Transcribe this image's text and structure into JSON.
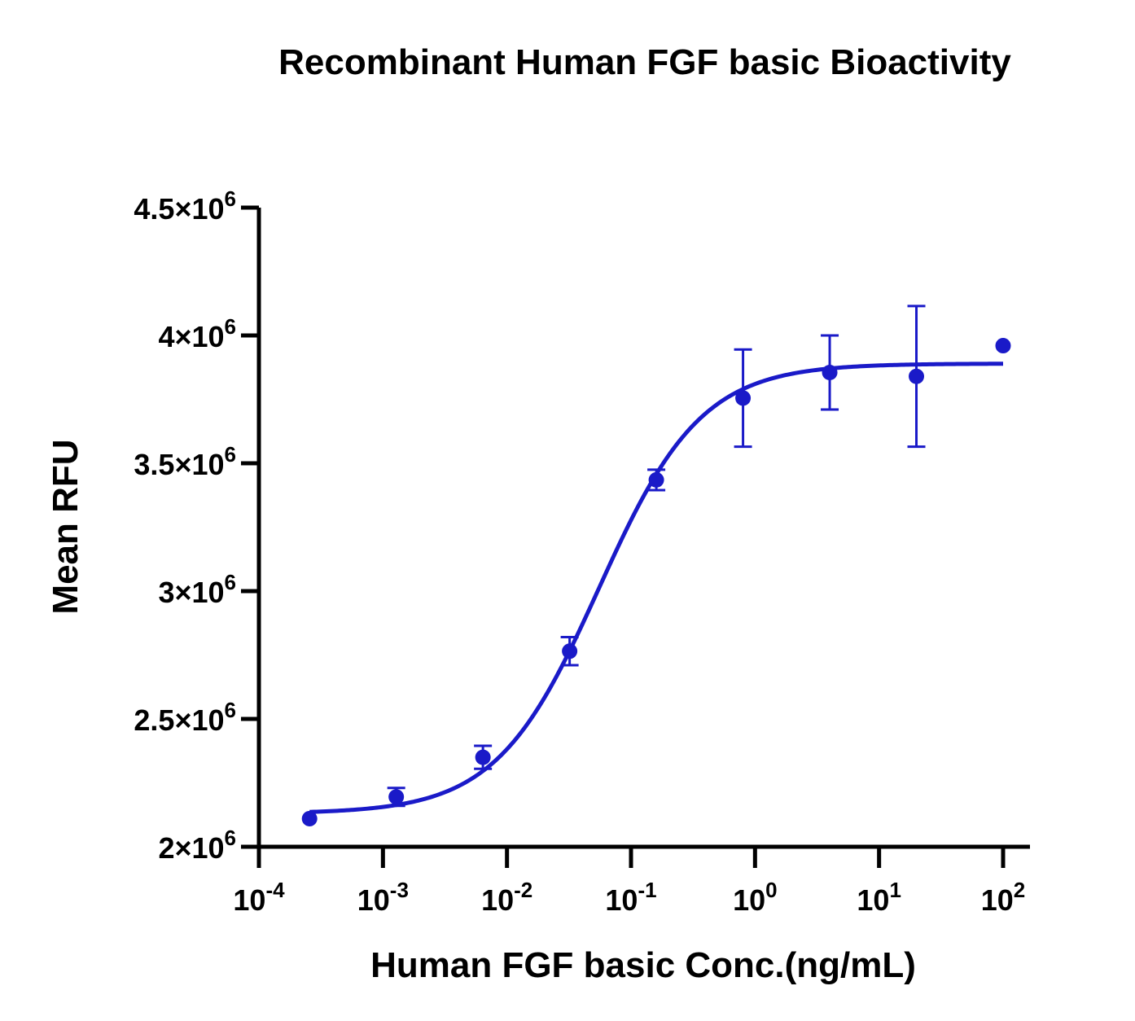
{
  "chart_data": {
    "type": "scatter",
    "title": "Recombinant Human FGF basic Bioactivity",
    "xlabel": "Human FGF basic Conc.(ng/mL)",
    "ylabel": "Mean RFU",
    "x_scale": "log",
    "xlim": [
      0.0001,
      100
    ],
    "ylim": [
      2000000,
      4500000
    ],
    "x_ticks": [
      {
        "value": 0.0001,
        "base": "10",
        "exp": "-4"
      },
      {
        "value": 0.001,
        "base": "10",
        "exp": "-3"
      },
      {
        "value": 0.01,
        "base": "10",
        "exp": "-2"
      },
      {
        "value": 0.1,
        "base": "10",
        "exp": "-1"
      },
      {
        "value": 1,
        "base": "10",
        "exp": "0"
      },
      {
        "value": 10,
        "base": "10",
        "exp": "1"
      },
      {
        "value": 100,
        "base": "10",
        "exp": "2"
      }
    ],
    "y_ticks": [
      {
        "value": 2000000,
        "mant": "2",
        "exp": "6"
      },
      {
        "value": 2500000,
        "mant": "2.5",
        "exp": "6"
      },
      {
        "value": 3000000,
        "mant": "3",
        "exp": "6"
      },
      {
        "value": 3500000,
        "mant": "3.5",
        "exp": "6"
      },
      {
        "value": 4000000,
        "mant": "4",
        "exp": "6"
      },
      {
        "value": 4500000,
        "mant": "4.5",
        "exp": "6"
      }
    ],
    "color": "#1a1ac8",
    "series": [
      {
        "points": [
          {
            "x": 0.000256,
            "y": 2110000,
            "err": 0
          },
          {
            "x": 0.00128,
            "y": 2195000,
            "err": 35000
          },
          {
            "x": 0.0064,
            "y": 2350000,
            "err": 45000
          },
          {
            "x": 0.032,
            "y": 2765000,
            "err": 55000
          },
          {
            "x": 0.16,
            "y": 3435000,
            "err": 40000
          },
          {
            "x": 0.8,
            "y": 3755000,
            "err": 190000
          },
          {
            "x": 4,
            "y": 3855000,
            "err": 145000
          },
          {
            "x": 20,
            "y": 3840000,
            "err": 275000
          },
          {
            "x": 100,
            "y": 3960000,
            "err": 0
          }
        ],
        "fit": {
          "model": "4PL",
          "bottom": 2130000,
          "top": 3890000,
          "ec50": 0.055,
          "hill": 1.05,
          "x_range": [
            0.000256,
            100
          ]
        }
      }
    ]
  }
}
